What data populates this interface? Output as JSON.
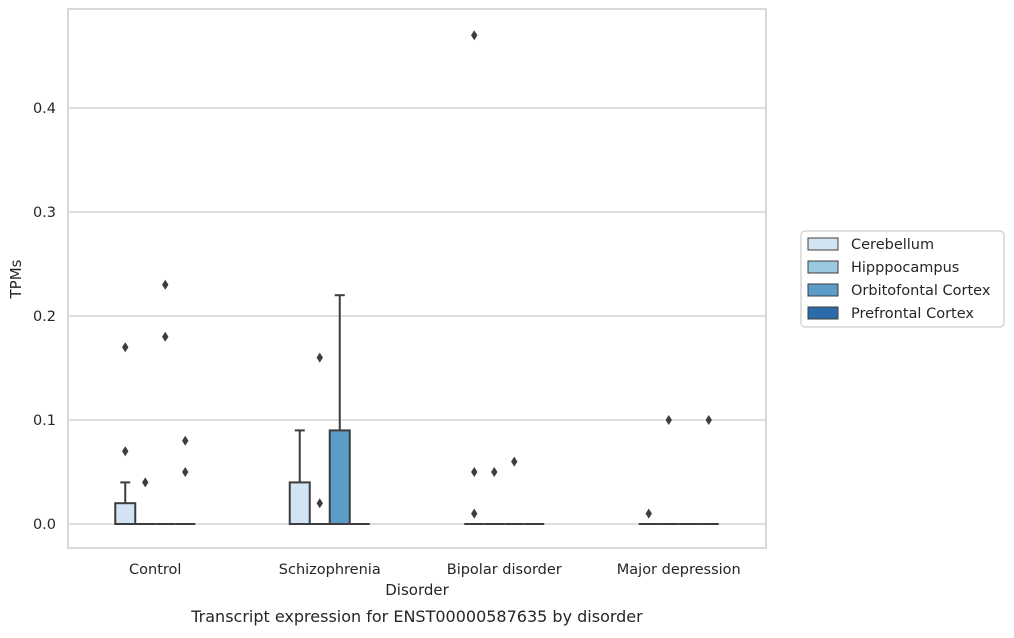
{
  "caption": "Transcript expression for ENST00000587635 by disorder",
  "chart_data": {
    "type": "box",
    "title": "",
    "xlabel": "Disorder",
    "ylabel": "TPMs",
    "ylim": [
      -0.023,
      0.494
    ],
    "yticks": [
      0.0,
      0.1,
      0.2,
      0.3,
      0.4
    ],
    "ytick_labels": [
      "0.0",
      "0.1",
      "0.2",
      "0.3",
      "0.4"
    ],
    "grid": "horizontal",
    "legend_position": "right",
    "categories": [
      "Control",
      "Schizophrenia",
      "Bipolar disorder",
      "Major depression"
    ],
    "series": [
      {
        "name": "Cerebellum",
        "color": "#d2e3f3",
        "boxes": [
          {
            "q1": 0.0,
            "median": 0.0,
            "q3": 0.02,
            "whisker_low": 0.0,
            "whisker_high": 0.04,
            "outliers": [
              0.07,
              0.17
            ]
          },
          {
            "q1": 0.0,
            "median": 0.0,
            "q3": 0.04,
            "whisker_low": 0.0,
            "whisker_high": 0.09,
            "outliers": []
          },
          {
            "q1": 0.0,
            "median": 0.0,
            "q3": 0.0,
            "whisker_low": 0.0,
            "whisker_high": 0.0,
            "outliers": [
              0.01,
              0.05,
              0.47
            ]
          },
          {
            "q1": 0.0,
            "median": 0.0,
            "q3": 0.0,
            "whisker_low": 0.0,
            "whisker_high": 0.0,
            "outliers": [
              0.01
            ]
          }
        ]
      },
      {
        "name": "Hipppocampus",
        "color": "#9ac8e0",
        "boxes": [
          {
            "q1": 0.0,
            "median": 0.0,
            "q3": 0.0,
            "whisker_low": 0.0,
            "whisker_high": 0.0,
            "outliers": [
              0.04
            ]
          },
          {
            "q1": 0.0,
            "median": 0.0,
            "q3": 0.0,
            "whisker_low": 0.0,
            "whisker_high": 0.0,
            "outliers": [
              0.02,
              0.16
            ]
          },
          {
            "q1": 0.0,
            "median": 0.0,
            "q3": 0.0,
            "whisker_low": 0.0,
            "whisker_high": 0.0,
            "outliers": [
              0.05
            ]
          },
          {
            "q1": 0.0,
            "median": 0.0,
            "q3": 0.0,
            "whisker_low": 0.0,
            "whisker_high": 0.0,
            "outliers": [
              0.1
            ]
          }
        ]
      },
      {
        "name": "Orbitofontal Cortex",
        "color": "#5b9cc9",
        "boxes": [
          {
            "q1": 0.0,
            "median": 0.0,
            "q3": 0.0,
            "whisker_low": 0.0,
            "whisker_high": 0.0,
            "outliers": [
              0.18,
              0.23
            ]
          },
          {
            "q1": 0.0,
            "median": 0.0,
            "q3": 0.09,
            "whisker_low": 0.0,
            "whisker_high": 0.22,
            "outliers": []
          },
          {
            "q1": 0.0,
            "median": 0.0,
            "q3": 0.0,
            "whisker_low": 0.0,
            "whisker_high": 0.0,
            "outliers": [
              0.06
            ]
          },
          {
            "q1": 0.0,
            "median": 0.0,
            "q3": 0.0,
            "whisker_low": 0.0,
            "whisker_high": 0.0,
            "outliers": []
          }
        ]
      },
      {
        "name": "Prefrontal Cortex",
        "color": "#2a6ba8",
        "boxes": [
          {
            "q1": 0.0,
            "median": 0.0,
            "q3": 0.0,
            "whisker_low": 0.0,
            "whisker_high": 0.0,
            "outliers": [
              0.05,
              0.08
            ]
          },
          {
            "q1": 0.0,
            "median": 0.0,
            "q3": 0.0,
            "whisker_low": 0.0,
            "whisker_high": 0.0,
            "outliers": []
          },
          {
            "q1": 0.0,
            "median": 0.0,
            "q3": 0.0,
            "whisker_low": 0.0,
            "whisker_high": 0.0,
            "outliers": []
          },
          {
            "q1": 0.0,
            "median": 0.0,
            "q3": 0.0,
            "whisker_low": 0.0,
            "whisker_high": 0.0,
            "outliers": [
              0.1
            ]
          }
        ]
      }
    ]
  }
}
